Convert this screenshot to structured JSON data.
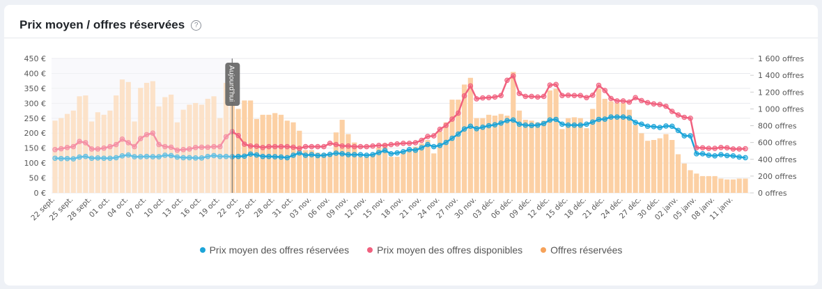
{
  "header": {
    "title": "Prix moyen / offres réservées",
    "help_icon": "question-circle-icon"
  },
  "today_label": "Aujourd'hui",
  "colors": {
    "reserved_price": "#1ca4d8",
    "available_price": "#f0607e",
    "reserved_offers": "#f6a25a",
    "bars": "#fcd0a4"
  },
  "chart_data": {
    "type": "bar+line",
    "title": "Prix moyen / offres réservées",
    "y_left": {
      "range": [
        0,
        450
      ],
      "ticks": [
        "0 €",
        "50 €",
        "100 €",
        "150 €",
        "200 €",
        "250 €",
        "300 €",
        "350 €",
        "400 €",
        "450 €"
      ]
    },
    "y_right": {
      "range": [
        0,
        1600
      ],
      "ticks": [
        "0 offres",
        "200 offres",
        "400 offres",
        "600 offres",
        "800 offres",
        "1 000 offres",
        "1 200 offres",
        "1 400 offres",
        "1 600 offres"
      ]
    },
    "grid": true,
    "legend_placement": "bottom",
    "today_category": "21 oct.",
    "categories": [
      "22 sept.",
      "23 sept.",
      "24 sept.",
      "25 sept.",
      "26 sept.",
      "27 sept.",
      "28 sept.",
      "29 sept.",
      "30 sept.",
      "01 oct.",
      "02 oct.",
      "03 oct.",
      "04 oct.",
      "05 oct.",
      "06 oct.",
      "07 oct.",
      "08 oct.",
      "09 oct.",
      "10 oct.",
      "11 oct.",
      "12 oct.",
      "13 oct.",
      "14 oct.",
      "15 oct.",
      "16 oct.",
      "17 oct.",
      "18 oct.",
      "19 oct.",
      "20 oct.",
      "21 oct.",
      "22 oct.",
      "23 oct.",
      "24 oct.",
      "25 oct.",
      "26 oct.",
      "27 oct.",
      "28 oct.",
      "29 oct.",
      "30 oct.",
      "31 oct.",
      "01 nov.",
      "02 nov.",
      "03 nov.",
      "04 nov.",
      "05 nov.",
      "06 nov.",
      "07 nov.",
      "08 nov.",
      "09 nov.",
      "10 nov.",
      "11 nov.",
      "12 nov.",
      "13 nov.",
      "14 nov.",
      "15 nov.",
      "16 nov.",
      "17 nov.",
      "18 nov.",
      "19 nov.",
      "20 nov.",
      "21 nov.",
      "22 nov.",
      "23 nov.",
      "24 nov.",
      "25 nov.",
      "26 nov.",
      "27 nov.",
      "28 nov.",
      "29 nov.",
      "30 nov.",
      "01 déc.",
      "02 déc.",
      "03 déc.",
      "04 déc.",
      "05 déc.",
      "06 déc.",
      "07 déc.",
      "08 déc.",
      "09 déc.",
      "10 déc.",
      "11 déc.",
      "12 déc.",
      "13 déc.",
      "14 déc.",
      "15 déc.",
      "16 déc.",
      "17 déc.",
      "18 déc.",
      "19 déc.",
      "20 déc.",
      "21 déc.",
      "22 déc.",
      "23 déc.",
      "24 déc.",
      "25 déc.",
      "26 déc.",
      "27 déc.",
      "28 déc.",
      "29 déc.",
      "30 déc.",
      "31 déc.",
      "01 janv.",
      "02 janv.",
      "03 janv.",
      "04 janv.",
      "05 janv.",
      "06 janv.",
      "07 janv.",
      "08 janv.",
      "09 janv.",
      "10 janv.",
      "11 janv.",
      "12 janv.",
      "13 janv."
    ],
    "series": [
      {
        "name": "Prix moyen des offres réservées",
        "type": "line",
        "axis": "left",
        "color": "#1ca4d8",
        "values": [
          116,
          115,
          115,
          114,
          120,
          122,
          116,
          117,
          116,
          116,
          118,
          124,
          127,
          121,
          121,
          122,
          121,
          121,
          126,
          125,
          120,
          118,
          118,
          117,
          117,
          122,
          125,
          122,
          122,
          121,
          122,
          123,
          130,
          127,
          122,
          122,
          121,
          120,
          118,
          126,
          134,
          126,
          128,
          125,
          126,
          129,
          133,
          131,
          128,
          128,
          128,
          126,
          128,
          135,
          142,
          131,
          134,
          138,
          145,
          143,
          151,
          162,
          155,
          159,
          169,
          183,
          197,
          214,
          223,
          215,
          220,
          225,
          228,
          234,
          242,
          244,
          230,
          227,
          226,
          227,
          232,
          244,
          246,
          230,
          227,
          227,
          227,
          230,
          237,
          246,
          247,
          254,
          254,
          254,
          251,
          236,
          230,
          223,
          222,
          219,
          224,
          223,
          209,
          191,
          191,
          131,
          131,
          126,
          124,
          128,
          125,
          124,
          120,
          118
        ]
      },
      {
        "name": "Prix moyen des offres disponibles",
        "type": "line",
        "axis": "left",
        "color": "#f0607e",
        "values": [
          145,
          148,
          152,
          155,
          172,
          168,
          147,
          147,
          150,
          155,
          162,
          180,
          168,
          155,
          182,
          195,
          200,
          162,
          155,
          153,
          143,
          145,
          147,
          152,
          153,
          153,
          155,
          155,
          188,
          205,
          192,
          163,
          157,
          156,
          152,
          155,
          155,
          155,
          155,
          153,
          149,
          155,
          155,
          155,
          155,
          166,
          162,
          157,
          157,
          155,
          155,
          155,
          157,
          159,
          159,
          162,
          164,
          166,
          166,
          168,
          176,
          189,
          191,
          213,
          226,
          247,
          267,
          325,
          358,
          315,
          318,
          319,
          321,
          326,
          377,
          392,
          333,
          323,
          323,
          321,
          323,
          361,
          363,
          326,
          327,
          326,
          326,
          319,
          327,
          360,
          343,
          316,
          308,
          308,
          304,
          319,
          309,
          302,
          298,
          296,
          290,
          273,
          261,
          253,
          250,
          151,
          151,
          149,
          149,
          152,
          151,
          147,
          147,
          148
        ]
      },
      {
        "name": "Offres réservées",
        "type": "bar",
        "axis": "right",
        "color": "#f6a25a",
        "values": [
          860,
          890,
          940,
          980,
          1150,
          1160,
          850,
          960,
          930,
          980,
          1160,
          1350,
          1320,
          850,
          1250,
          1310,
          1330,
          1030,
          1140,
          1170,
          840,
          990,
          1050,
          1070,
          1050,
          1120,
          1150,
          890,
          1310,
          1310,
          1000,
          1100,
          1100,
          880,
          930,
          930,
          950,
          930,
          860,
          840,
          740,
          510,
          510,
          480,
          470,
          470,
          720,
          870,
          700,
          600,
          430,
          430,
          460,
          540,
          590,
          430,
          430,
          480,
          510,
          550,
          590,
          630,
          470,
          730,
          840,
          1110,
          1110,
          1290,
          1370,
          890,
          890,
          930,
          920,
          940,
          920,
          1440,
          980,
          870,
          860,
          840,
          860,
          1220,
          1240,
          760,
          890,
          900,
          890,
          770,
          1000,
          1240,
          1120,
          1090,
          1070,
          1070,
          990,
          810,
          710,
          620,
          630,
          650,
          700,
          630,
          460,
          350,
          270,
          230,
          200,
          200,
          200,
          170,
          160,
          160,
          170,
          170
        ]
      }
    ]
  }
}
